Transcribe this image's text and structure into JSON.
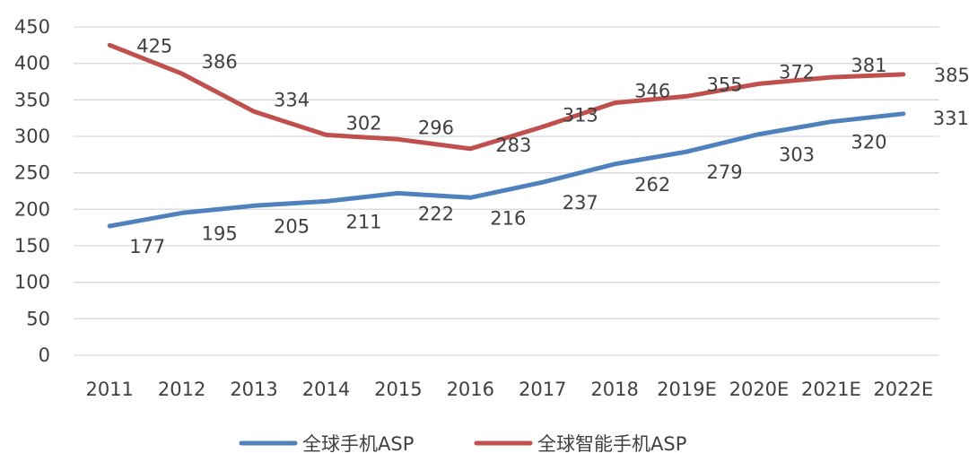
{
  "chart_data": {
    "type": "line",
    "categories": [
      "2011",
      "2012",
      "2013",
      "2014",
      "2015",
      "2016",
      "2017",
      "2018",
      "2019E",
      "2020E",
      "2021E",
      "2022E"
    ],
    "series": [
      {
        "name": "全球手机ASP",
        "color": "#4f81bd",
        "values": [
          177,
          195,
          205,
          211,
          222,
          216,
          237,
          262,
          279,
          303,
          320,
          331
        ]
      },
      {
        "name": "全球智能手机ASP",
        "color": "#c0504d",
        "values": [
          425,
          386,
          334,
          302,
          296,
          283,
          313,
          346,
          355,
          372,
          381,
          385
        ]
      }
    ],
    "ylim": [
      0,
      450
    ],
    "yticks": [
      0,
      50,
      100,
      150,
      200,
      250,
      300,
      350,
      400,
      450
    ],
    "grid": true,
    "legend_position": "bottom",
    "data_labels": true
  }
}
